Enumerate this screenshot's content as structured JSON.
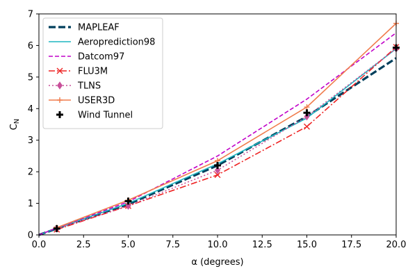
{
  "chart_data": {
    "type": "line",
    "xlabel": "α (degrees)",
    "ylabel": "C_N",
    "xlim": [
      0,
      20
    ],
    "ylim": [
      0,
      7
    ],
    "xticks": [
      "0.0",
      "2.5",
      "5.0",
      "7.5",
      "10.0",
      "12.5",
      "15.0",
      "17.5",
      "20.0"
    ],
    "yticks": [
      "0",
      "1",
      "2",
      "3",
      "4",
      "5",
      "6",
      "7"
    ],
    "grid": false,
    "legend_position": "upper-left",
    "series": [
      {
        "name": "MAPLEAF",
        "color": "#003f5c",
        "style": "dashed-thick",
        "marker": "none",
        "x": [
          0,
          1,
          5,
          10,
          15,
          20
        ],
        "y": [
          0,
          0.2,
          0.97,
          2.2,
          3.75,
          5.6
        ]
      },
      {
        "name": "Aeroprediction98",
        "color": "#1fb6c1",
        "style": "solid",
        "marker": "none",
        "x": [
          0,
          1,
          5,
          10,
          15,
          20
        ],
        "y": [
          0,
          0.21,
          1.0,
          2.25,
          3.7,
          5.9
        ]
      },
      {
        "name": "Datcom97",
        "color": "#c000c8",
        "style": "dashed",
        "marker": "none",
        "x": [
          0,
          1,
          5,
          10,
          15,
          20
        ],
        "y": [
          0,
          0.22,
          1.05,
          2.5,
          4.3,
          6.4
        ]
      },
      {
        "name": "FLU3M",
        "color": "#ee2222",
        "style": "dashdot",
        "marker": "x",
        "x": [
          1,
          5,
          10,
          15,
          20
        ],
        "y": [
          0.17,
          0.92,
          1.9,
          3.43,
          5.95
        ]
      },
      {
        "name": "TLNS",
        "color": "#c8509a",
        "style": "dotted",
        "marker": "diamond",
        "x": [
          1,
          5,
          10,
          15,
          20
        ],
        "y": [
          0.2,
          0.92,
          2.05,
          3.75,
          5.9
        ]
      },
      {
        "name": "USER3D",
        "color": "#f07c4c",
        "style": "solid",
        "marker": "plus",
        "x": [
          1,
          5,
          10,
          15,
          20
        ],
        "y": [
          0.23,
          1.1,
          2.35,
          4.05,
          6.7
        ]
      },
      {
        "name": "Wind Tunnel",
        "color": "#000000",
        "style": "none",
        "marker": "bigplus",
        "x": [
          1,
          5,
          10,
          15,
          20
        ],
        "y": [
          0.2,
          1.07,
          2.2,
          3.87,
          5.93
        ]
      }
    ]
  }
}
